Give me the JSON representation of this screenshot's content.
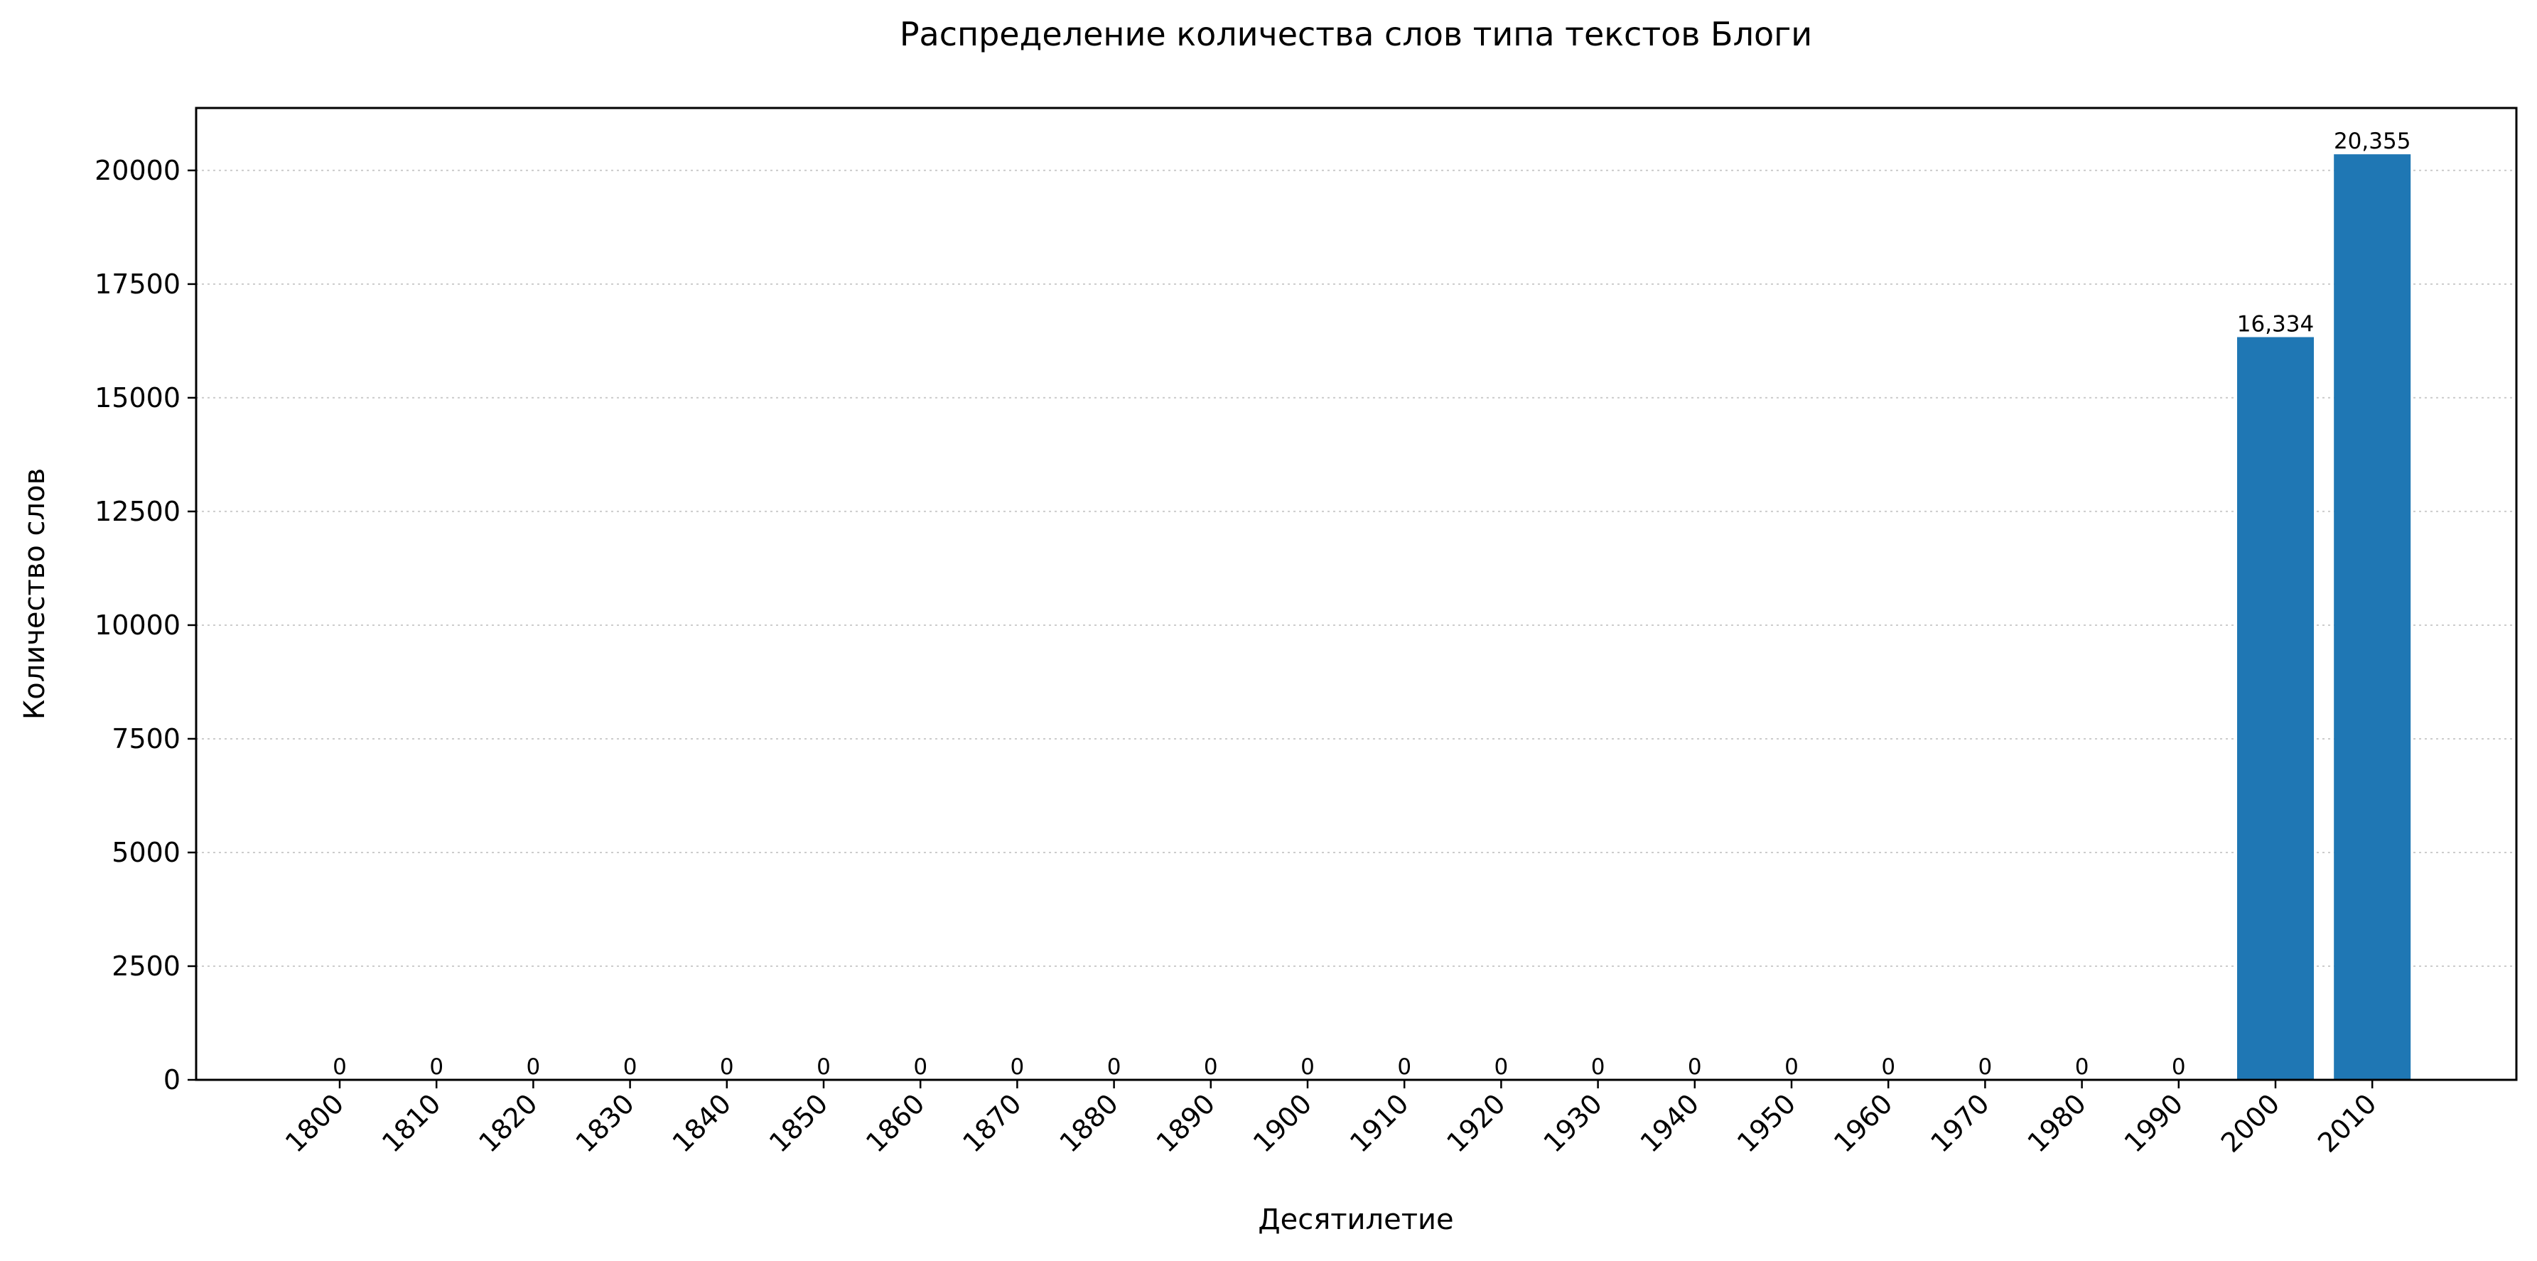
{
  "chart_data": {
    "type": "bar",
    "title": "Распределение количества слов типа текстов Блоги",
    "xlabel": "Десятилетие",
    "ylabel": "Количество слов",
    "categories": [
      "1800",
      "1810",
      "1820",
      "1830",
      "1840",
      "1850",
      "1860",
      "1870",
      "1880",
      "1890",
      "1900",
      "1910",
      "1920",
      "1930",
      "1940",
      "1950",
      "1960",
      "1970",
      "1980",
      "1990",
      "2000",
      "2010"
    ],
    "values": [
      0,
      0,
      0,
      0,
      0,
      0,
      0,
      0,
      0,
      0,
      0,
      0,
      0,
      0,
      0,
      0,
      0,
      0,
      0,
      0,
      16334,
      20355
    ],
    "value_labels": [
      "0",
      "0",
      "0",
      "0",
      "0",
      "0",
      "0",
      "0",
      "0",
      "0",
      "0",
      "0",
      "0",
      "0",
      "0",
      "0",
      "0",
      "0",
      "0",
      "0",
      "16,334",
      "20,355"
    ],
    "y_ticks": [
      0,
      2500,
      5000,
      7500,
      10000,
      12500,
      15000,
      17500,
      20000
    ],
    "y_tick_labels": [
      "0",
      "2500",
      "5000",
      "7500",
      "10000",
      "12500",
      "15000",
      "17500",
      "20000"
    ],
    "ylim": [
      0,
      21373
    ],
    "grid": "y-dotted",
    "legend": "none",
    "bar_color": "#1f77b4",
    "grid_color": "#cccccc",
    "axis_color": "#000000"
  }
}
